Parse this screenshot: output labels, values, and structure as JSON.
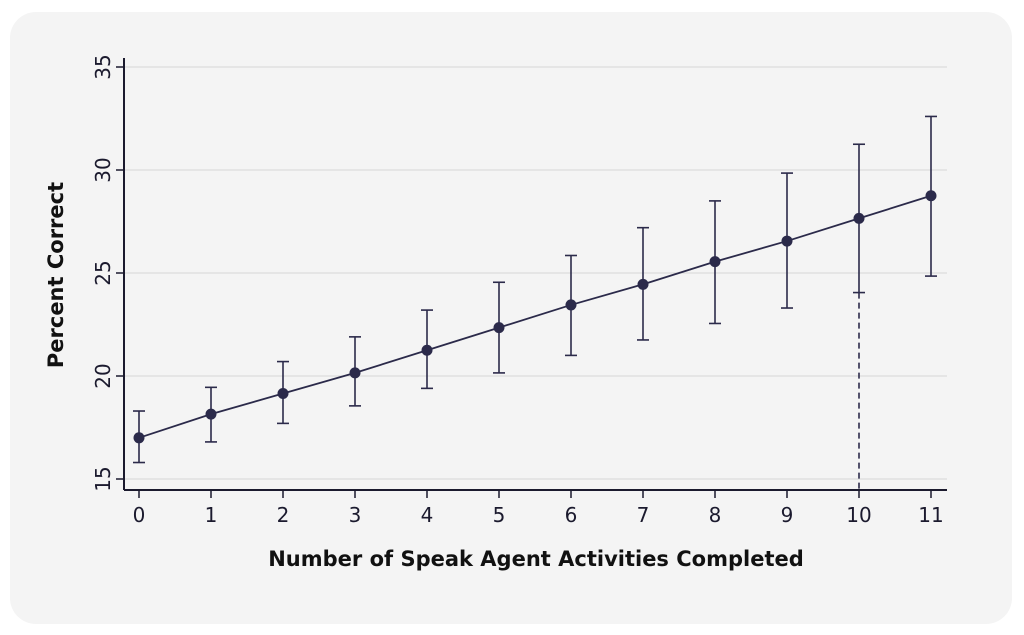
{
  "chart_data": {
    "type": "scatter",
    "title": "",
    "xlabel": "Number of Speak Agent Activities Completed",
    "ylabel": "Percent Correct",
    "xlim": [
      0,
      11
    ],
    "ylim": [
      15,
      35
    ],
    "x_ticks": [
      0,
      1,
      2,
      3,
      4,
      5,
      6,
      7,
      8,
      9,
      10,
      11
    ],
    "y_ticks": [
      15,
      20,
      25,
      30,
      35
    ],
    "grid": "horizontal",
    "colors": {
      "series": "#2b2a4a",
      "grid": "#d6d6d6",
      "background": "#f4f4f4"
    },
    "series": [
      {
        "x": [
          0,
          1,
          2,
          3,
          4,
          5,
          6,
          7,
          8,
          9,
          10,
          11
        ],
        "y": [
          17.0,
          18.15,
          19.15,
          20.15,
          21.25,
          22.35,
          23.45,
          24.45,
          25.55,
          26.55,
          27.65,
          28.75
        ],
        "ci_low": [
          15.8,
          16.8,
          17.7,
          18.55,
          19.4,
          20.15,
          21.0,
          21.75,
          22.55,
          23.3,
          24.05,
          24.85
        ],
        "ci_high": [
          18.3,
          19.45,
          20.7,
          21.9,
          23.2,
          24.55,
          25.85,
          27.2,
          28.5,
          29.85,
          31.25,
          32.6
        ]
      }
    ],
    "annotations": [
      {
        "type": "dashed-vertical-line",
        "x": 10,
        "from_y": 15,
        "to_y": 24.05
      }
    ]
  }
}
